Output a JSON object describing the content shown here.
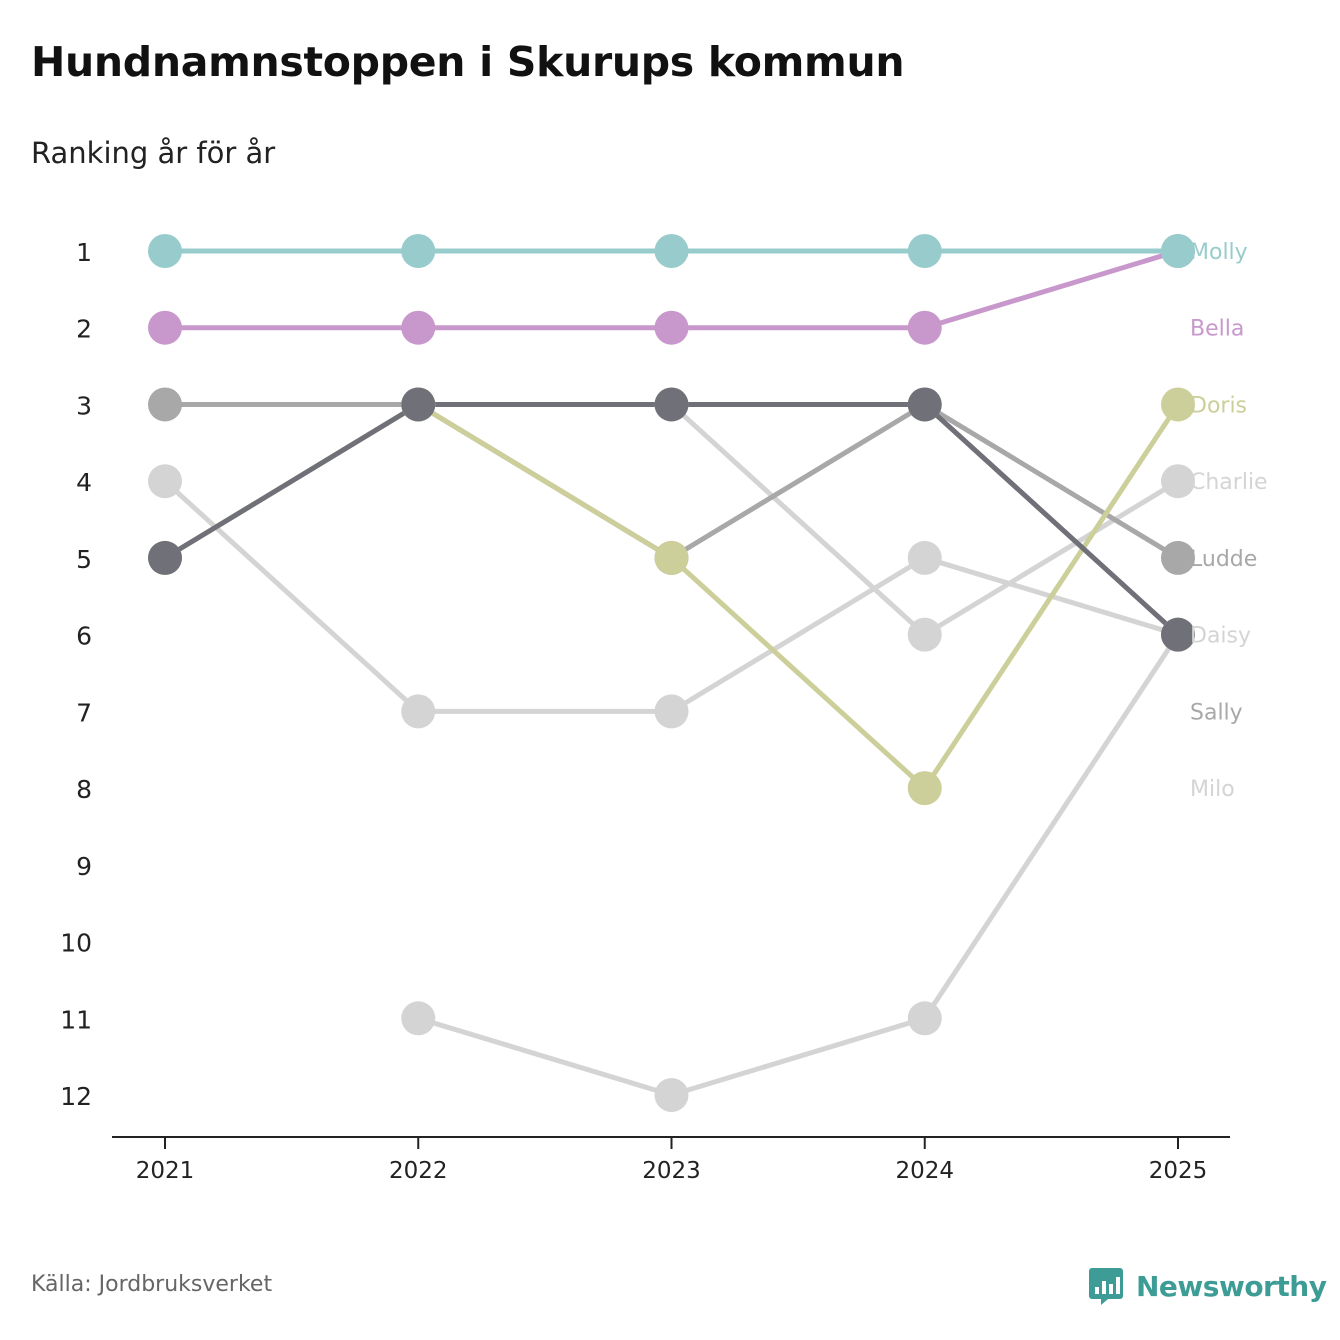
{
  "header": {
    "title": "Hundnamnstoppen i Skurups kommun",
    "subtitle": "Ranking år för år"
  },
  "footer": {
    "source": "Källa: Jordbruksverket",
    "brand": "Newsworthy",
    "brand_color": "#3d9c95",
    "brand_icon": "bar-chart-speech-bubble-icon"
  },
  "chart_data": {
    "type": "line",
    "subtype": "bump",
    "title": "Hundnamnstoppen i Skurups kommun",
    "subtitle": "Ranking år för år",
    "xlabel": "",
    "ylabel": "",
    "x": [
      "2021",
      "2022",
      "2023",
      "2024",
      "2025"
    ],
    "y_ticks": [
      "1",
      "2",
      "3",
      "4",
      "5",
      "6",
      "7",
      "8",
      "9",
      "10",
      "11",
      "12"
    ],
    "ylim": [
      1,
      12
    ],
    "y_inverted": true,
    "grid": false,
    "series": [
      {
        "name": "Milo",
        "color": "#d4d4d4",
        "ranks": [
          null,
          11,
          12,
          11,
          6
        ]
      },
      {
        "name": "Sally",
        "color": "#d4d4d4",
        "ranks": [
          4,
          7,
          7,
          5,
          6
        ]
      },
      {
        "name": "Charlie",
        "color": "#d4d4d4",
        "ranks": [
          null,
          3,
          3,
          6,
          4
        ]
      },
      {
        "name": "Ludde",
        "color": "#a8a8a8",
        "ranks": [
          3,
          3,
          5,
          3,
          5
        ]
      },
      {
        "name": "Doris",
        "color": "#cccf99",
        "ranks": [
          5,
          3,
          5,
          8,
          3
        ]
      },
      {
        "name": "Daisy",
        "color": "#707078",
        "ranks": [
          5,
          3,
          3,
          3,
          6
        ]
      },
      {
        "name": "Bella",
        "color": "#c898cc",
        "ranks": [
          2,
          2,
          2,
          2,
          1
        ]
      },
      {
        "name": "Molly",
        "color": "#98cccc",
        "ranks": [
          1,
          1,
          1,
          1,
          1
        ]
      }
    ],
    "legend_order": [
      "Molly",
      "Bella",
      "Doris",
      "Charlie",
      "Ludde",
      "Daisy",
      "Sally",
      "Milo"
    ],
    "label_colors": {
      "Molly": "#98cccc",
      "Bella": "#c898cc",
      "Doris": "#cccf99",
      "Charlie": "#d4d4d4",
      "Ludde": "#a8a8a8",
      "Daisy": "#d4d4d4",
      "Sally": "#a8a8a8",
      "Milo": "#d4d4d4"
    },
    "legend_placement": "right"
  }
}
